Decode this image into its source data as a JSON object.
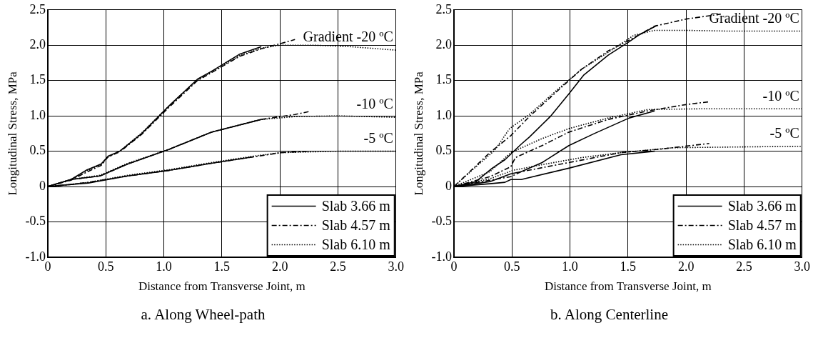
{
  "chart_data": [
    {
      "type": "line",
      "title": "a. Along Wheel-path",
      "xlabel": "Distance from Transverse Joint, m",
      "ylabel": "Longitudinal Stress, MPa",
      "xlim": [
        0,
        3
      ],
      "ylim": [
        -1,
        2.5
      ],
      "xticks": [
        0,
        0.5,
        {
          "value": 1,
          "label": "1.0"
        },
        1.5,
        {
          "value": 2,
          "label": "2.0"
        },
        2.5,
        {
          "value": 3,
          "label": "3.0"
        }
      ],
      "yticks": [
        {
          "value": -1,
          "label": "-1.0"
        },
        -0.5,
        0,
        0.5,
        {
          "value": 1,
          "label": "1.0"
        },
        1.5,
        {
          "value": 2,
          "label": "2.0"
        },
        2.5
      ],
      "grid": true,
      "legend": "bottom right",
      "marker": "none",
      "annotations": [
        "Gradient -20 ºC",
        "-10 ºC",
        "-5 ºC"
      ],
      "series": [
        {
          "name": "Slab 3.66 m",
          "color": "#000000",
          "line_style": "solid",
          "x": [
            0,
            0.2,
            0.33,
            0.46,
            0.52,
            0.62,
            0.81,
            1.05,
            1.29,
            1.41,
            1.65,
            1.84
          ],
          "values": [
            0,
            0.1,
            0.23,
            0.32,
            0.43,
            0.5,
            0.75,
            1.15,
            1.52,
            1.63,
            1.87,
            1.98
          ]
        },
        {
          "name": "Slab 4.57 m",
          "color": "#000000",
          "line_style": "dashed",
          "x": [
            0,
            0.2,
            0.33,
            0.46,
            0.52,
            0.62,
            0.81,
            1.05,
            1.29,
            1.41,
            1.65,
            1.84,
            2.0,
            2.13
          ],
          "values": [
            0,
            0.09,
            0.2,
            0.3,
            0.42,
            0.49,
            0.74,
            1.13,
            1.5,
            1.61,
            1.84,
            1.95,
            2.02,
            2.08
          ]
        },
        {
          "name": "Slab 6.10 m",
          "color": "#000000",
          "line_style": "dotted",
          "x": [
            0,
            0.2,
            0.33,
            0.46,
            0.52,
            0.62,
            0.81,
            1.05,
            1.29,
            1.41,
            1.65,
            1.84,
            2.0,
            2.3,
            2.6,
            3.0
          ],
          "values": [
            0,
            0.1,
            0.22,
            0.31,
            0.42,
            0.5,
            0.76,
            1.15,
            1.51,
            1.62,
            1.85,
            1.96,
            2.0,
            2.0,
            1.98,
            1.93
          ]
        },
        {
          "color": "#000000",
          "line_style": "solid",
          "x": [
            0,
            0.2,
            0.45,
            0.69,
            1.05,
            1.41,
            1.84
          ],
          "values": [
            0,
            0.1,
            0.15,
            0.32,
            0.53,
            0.77,
            0.95
          ]
        },
        {
          "color": "#000000",
          "line_style": "dashed",
          "x": [
            0,
            0.2,
            0.45,
            0.69,
            1.05,
            1.41,
            1.84,
            2.13,
            2.25
          ],
          "values": [
            0,
            0.1,
            0.15,
            0.32,
            0.53,
            0.77,
            0.95,
            1.02,
            1.06
          ]
        },
        {
          "color": "#000000",
          "line_style": "dotted",
          "x": [
            0,
            0.2,
            0.45,
            0.69,
            1.05,
            1.41,
            1.84,
            2.13,
            2.5,
            3.0
          ],
          "values": [
            0,
            0.1,
            0.16,
            0.33,
            0.53,
            0.77,
            0.95,
            0.99,
            1.0,
            0.98
          ]
        },
        {
          "color": "#000000",
          "line_style": "solid",
          "x": [
            0,
            0.2,
            0.35,
            0.69,
            1.05,
            1.41,
            1.77
          ],
          "values": [
            0,
            0.03,
            0.05,
            0.15,
            0.23,
            0.33,
            0.42
          ]
        },
        {
          "color": "#000000",
          "line_style": "dashed",
          "x": [
            0,
            0.2,
            0.35,
            0.69,
            1.05,
            1.41,
            1.77,
            2.01,
            2.25
          ],
          "values": [
            0,
            0.03,
            0.06,
            0.15,
            0.23,
            0.33,
            0.42,
            0.48,
            0.5
          ]
        },
        {
          "color": "#000000",
          "line_style": "dotted",
          "x": [
            0,
            0.2,
            0.35,
            0.69,
            1.05,
            1.41,
            1.77,
            2.01,
            2.5,
            3.0
          ],
          "values": [
            0,
            0.03,
            0.06,
            0.16,
            0.24,
            0.34,
            0.43,
            0.48,
            0.5,
            0.5
          ]
        }
      ]
    },
    {
      "type": "line",
      "title": "b. Along Centerline",
      "xlabel": "Distance from Transverse Joint, m",
      "ylabel": "Longitudinal Stress, MPa",
      "xlim": [
        0,
        3
      ],
      "ylim": [
        -1,
        2.5
      ],
      "xticks": [
        0,
        0.5,
        {
          "value": 1,
          "label": "1.0"
        },
        1.5,
        {
          "value": 2,
          "label": "2.0"
        },
        2.5,
        {
          "value": 3,
          "label": "3.0"
        }
      ],
      "yticks": [
        {
          "value": -1,
          "label": "-1.0"
        },
        -0.5,
        0,
        0.5,
        {
          "value": 1,
          "label": "1.0"
        },
        1.5,
        {
          "value": 2,
          "label": "2.0"
        },
        2.5
      ],
      "grid": true,
      "legend": "bottom right",
      "marker": "none",
      "annotations": [
        "Gradient -20 ºC",
        "-10 ºC",
        "-5 ºC"
      ],
      "series": [
        {
          "name": "Slab 3.66 m",
          "color": "#000000",
          "line_style": "solid",
          "x": [
            0,
            0.19,
            0.33,
            0.44,
            0.58,
            0.65,
            0.83,
            0.99,
            1.12,
            1.33,
            1.51,
            1.6,
            1.75
          ],
          "values": [
            0,
            0.07,
            0.26,
            0.38,
            0.6,
            0.7,
            0.99,
            1.31,
            1.58,
            1.86,
            2.05,
            2.15,
            2.28
          ]
        },
        {
          "name": "Slab 4.57 m",
          "color": "#000000",
          "line_style": "dashed",
          "x": [
            0,
            0.31,
            0.49,
            0.65,
            0.87,
            1.1,
            1.33,
            1.51,
            1.73,
            2.0,
            2.3
          ],
          "values": [
            0,
            0.48,
            0.72,
            0.99,
            1.32,
            1.66,
            1.92,
            2.07,
            2.27,
            2.37,
            2.44
          ]
        },
        {
          "name": "Slab 6.10 m",
          "color": "#000000",
          "line_style": "dotted",
          "x": [
            0,
            0.19,
            0.35,
            0.48,
            0.65,
            0.87,
            1.1,
            1.33,
            1.55,
            1.73,
            2.0,
            2.35,
            3.0
          ],
          "values": [
            0,
            0.28,
            0.51,
            0.82,
            1.02,
            1.34,
            1.66,
            1.9,
            2.14,
            2.21,
            2.21,
            2.2,
            2.2
          ]
        },
        {
          "color": "#000000",
          "line_style": "solid",
          "x": [
            0,
            0.31,
            0.49,
            0.58,
            0.76,
            0.99,
            1.21,
            1.51,
            1.73
          ],
          "values": [
            0,
            0.07,
            0.18,
            0.21,
            0.34,
            0.58,
            0.75,
            0.97,
            1.07
          ]
        },
        {
          "color": "#000000",
          "line_style": "dashed",
          "x": [
            0,
            0.31,
            0.49,
            0.53,
            0.76,
            0.99,
            1.33,
            1.67,
            2.0,
            2.2
          ],
          "values": [
            0,
            0.14,
            0.28,
            0.41,
            0.58,
            0.77,
            0.95,
            1.07,
            1.16,
            1.2
          ]
        },
        {
          "color": "#000000",
          "line_style": "dotted",
          "x": [
            0,
            0.31,
            0.49,
            0.76,
            0.99,
            1.33,
            1.67,
            2.12,
            3.0
          ],
          "values": [
            0,
            0.21,
            0.48,
            0.68,
            0.82,
            0.97,
            1.09,
            1.1,
            1.1
          ]
        },
        {
          "color": "#000000",
          "line_style": "solid",
          "x": [
            0,
            0.31,
            0.44,
            0.49,
            0.58,
            0.99,
            1.44,
            1.73
          ],
          "values": [
            0,
            0.04,
            0.06,
            0.1,
            0.1,
            0.26,
            0.45,
            0.5
          ]
        },
        {
          "color": "#000000",
          "line_style": "dashed",
          "x": [
            0,
            0.31,
            0.49,
            0.58,
            0.99,
            1.44,
            1.78,
            2.2
          ],
          "values": [
            0,
            0.09,
            0.14,
            0.21,
            0.34,
            0.48,
            0.53,
            0.61
          ]
        },
        {
          "color": "#000000",
          "line_style": "dotted",
          "x": [
            0,
            0.31,
            0.51,
            0.76,
            1.1,
            1.44,
            1.89,
            3.0
          ],
          "values": [
            0,
            0.11,
            0.23,
            0.31,
            0.41,
            0.48,
            0.55,
            0.57
          ]
        }
      ]
    }
  ]
}
